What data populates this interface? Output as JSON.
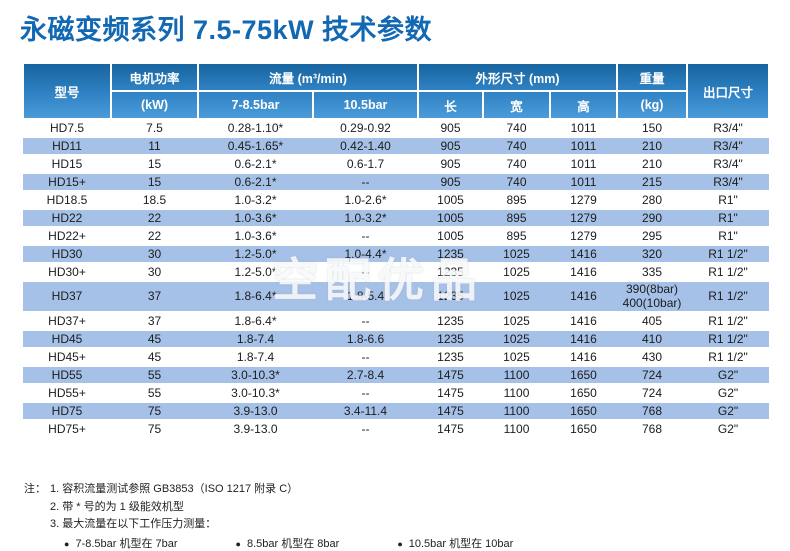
{
  "title": "永磁变频系列 7.5-75kW 技术参数",
  "colors": {
    "title_blue": "#1268b3",
    "header_gradient_top": "#17649f",
    "header_gradient_bottom": "#4b9bd8",
    "stripe_blue": "#a6c1e7"
  },
  "watermark": "空配优品",
  "table": {
    "header": {
      "model": "型号",
      "power_top": "电机功率",
      "power_bottom": "(kW)",
      "flow_group": "流量 (m³/min)",
      "flow_cols": [
        "7-8.5bar",
        "10.5bar"
      ],
      "dims_group": "外形尺寸 (mm)",
      "dims_cols": [
        "长",
        "宽",
        "高"
      ],
      "weight_top": "重量",
      "weight_bottom": "(kg)",
      "outlet": "出口尺寸"
    },
    "rows": [
      {
        "model": "HD7.5",
        "power_kw": "7.5",
        "flow_7_85": "0.28-1.10*",
        "flow_105": "0.29-0.92",
        "len": "905",
        "wid": "740",
        "hgt": "1011",
        "weight": "150",
        "outlet": "R3/4\""
      },
      {
        "model": "HD11",
        "power_kw": "11",
        "flow_7_85": "0.45-1.65*",
        "flow_105": "0.42-1.40",
        "len": "905",
        "wid": "740",
        "hgt": "1011",
        "weight": "210",
        "outlet": "R3/4\""
      },
      {
        "model": "HD15",
        "power_kw": "15",
        "flow_7_85": "0.6-2.1*",
        "flow_105": "0.6-1.7",
        "len": "905",
        "wid": "740",
        "hgt": "1011",
        "weight": "210",
        "outlet": "R3/4\""
      },
      {
        "model": "HD15+",
        "power_kw": "15",
        "flow_7_85": "0.6-2.1*",
        "flow_105": "--",
        "len": "905",
        "wid": "740",
        "hgt": "1011",
        "weight": "215",
        "outlet": "R3/4\""
      },
      {
        "model": "HD18.5",
        "power_kw": "18.5",
        "flow_7_85": "1.0-3.2*",
        "flow_105": "1.0-2.6*",
        "len": "1005",
        "wid": "895",
        "hgt": "1279",
        "weight": "280",
        "outlet": "R1\""
      },
      {
        "model": "HD22",
        "power_kw": "22",
        "flow_7_85": "1.0-3.6*",
        "flow_105": "1.0-3.2*",
        "len": "1005",
        "wid": "895",
        "hgt": "1279",
        "weight": "290",
        "outlet": "R1\""
      },
      {
        "model": "HD22+",
        "power_kw": "22",
        "flow_7_85": "1.0-3.6*",
        "flow_105": "--",
        "len": "1005",
        "wid": "895",
        "hgt": "1279",
        "weight": "295",
        "outlet": "R1\""
      },
      {
        "model": "HD30",
        "power_kw": "30",
        "flow_7_85": "1.2-5.0*",
        "flow_105": "1.0-4.4*",
        "len": "1235",
        "wid": "1025",
        "hgt": "1416",
        "weight": "320",
        "outlet": "R1 1/2\""
      },
      {
        "model": "HD30+",
        "power_kw": "30",
        "flow_7_85": "1.2-5.0*",
        "flow_105": "--",
        "len": "1235",
        "wid": "1025",
        "hgt": "1416",
        "weight": "335",
        "outlet": "R1 1/2\""
      },
      {
        "model": "HD37",
        "power_kw": "37",
        "flow_7_85": "1.8-6.4*",
        "flow_105": "1.8-5.4",
        "len": "1235",
        "wid": "1025",
        "hgt": "1416",
        "weight": "390(8bar)\n400(10bar)",
        "outlet": "R1 1/2\""
      },
      {
        "model": "HD37+",
        "power_kw": "37",
        "flow_7_85": "1.8-6.4*",
        "flow_105": "--",
        "len": "1235",
        "wid": "1025",
        "hgt": "1416",
        "weight": "405",
        "outlet": "R1 1/2\""
      },
      {
        "model": "HD45",
        "power_kw": "45",
        "flow_7_85": "1.8-7.4",
        "flow_105": "1.8-6.6",
        "len": "1235",
        "wid": "1025",
        "hgt": "1416",
        "weight": "410",
        "outlet": "R1 1/2\""
      },
      {
        "model": "HD45+",
        "power_kw": "45",
        "flow_7_85": "1.8-7.4",
        "flow_105": "--",
        "len": "1235",
        "wid": "1025",
        "hgt": "1416",
        "weight": "430",
        "outlet": "R1 1/2\""
      },
      {
        "model": "HD55",
        "power_kw": "55",
        "flow_7_85": "3.0-10.3*",
        "flow_105": "2.7-8.4",
        "len": "1475",
        "wid": "1100",
        "hgt": "1650",
        "weight": "724",
        "outlet": "G2\""
      },
      {
        "model": "HD55+",
        "power_kw": "55",
        "flow_7_85": "3.0-10.3*",
        "flow_105": "--",
        "len": "1475",
        "wid": "1100",
        "hgt": "1650",
        "weight": "724",
        "outlet": "G2\""
      },
      {
        "model": "HD75",
        "power_kw": "75",
        "flow_7_85": "3.9-13.0",
        "flow_105": "3.4-11.4",
        "len": "1475",
        "wid": "1100",
        "hgt": "1650",
        "weight": "768",
        "outlet": "G2\""
      },
      {
        "model": "HD75+",
        "power_kw": "75",
        "flow_7_85": "3.9-13.0",
        "flow_105": "--",
        "len": "1475",
        "wid": "1100",
        "hgt": "1650",
        "weight": "768",
        "outlet": "G2\""
      }
    ]
  },
  "notes": {
    "prefix": "注：",
    "note1": "1. 容积流量测试参照 GB3853（ISO 1217 附录 C）",
    "note2": "2. 带 * 号的为 1 级能效机型",
    "note3": "3. 最大流量在以下工作压力测量：",
    "bullet_glyph": "●",
    "bullets": [
      "7-8.5bar 机型在 7bar",
      "8.5bar 机型在 8bar",
      "10.5bar 机型在 10bar"
    ]
  }
}
